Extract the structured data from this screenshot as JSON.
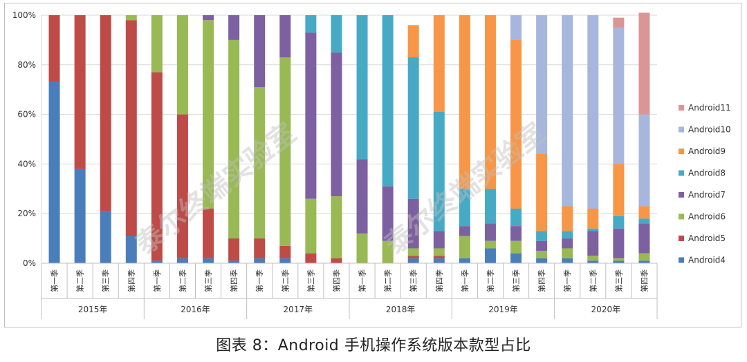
{
  "caption": "图表 8：Android 手机操作系统版本款型占比",
  "watermark": "泰尔终端实验室",
  "chart_data": {
    "type": "bar",
    "stacked": true,
    "percent": true,
    "ylim": [
      0,
      100
    ],
    "yticks": [
      "0%",
      "20%",
      "40%",
      "60%",
      "80%",
      "100%"
    ],
    "grid": true,
    "legend_position": "right",
    "years": [
      "2015年",
      "2016年",
      "2017年",
      "2018年",
      "2019年",
      "2020年"
    ],
    "quarter_labels": [
      "第一季",
      "第二季",
      "第三季",
      "第四季"
    ],
    "series": [
      {
        "name": "Android4",
        "color": "#4a7ebb",
        "values": [
          73,
          38,
          21,
          11,
          1,
          2,
          2,
          1,
          2,
          2,
          0,
          0,
          0,
          0,
          2,
          2,
          2,
          6,
          4,
          2,
          2,
          1,
          1,
          1
        ]
      },
      {
        "name": "Android5",
        "color": "#be4b48",
        "values": [
          27,
          62,
          79,
          87,
          76,
          58,
          20,
          9,
          8,
          5,
          4,
          2,
          0,
          0,
          1,
          1,
          0,
          0,
          0,
          0,
          0,
          0,
          0,
          0
        ]
      },
      {
        "name": "Android6",
        "color": "#98b954",
        "values": [
          0,
          0,
          0,
          2,
          23,
          40,
          76,
          80,
          61,
          76,
          22,
          25,
          12,
          9,
          3,
          3,
          9,
          3,
          5,
          3,
          4,
          2,
          1,
          3
        ]
      },
      {
        "name": "Android7",
        "color": "#7d60a0",
        "values": [
          0,
          0,
          0,
          0,
          0,
          0,
          2,
          10,
          29,
          17,
          67,
          58,
          30,
          22,
          20,
          7,
          4,
          7,
          6,
          4,
          4,
          10,
          12,
          12
        ]
      },
      {
        "name": "Android8",
        "color": "#46aac5",
        "values": [
          0,
          0,
          0,
          0,
          0,
          0,
          0,
          0,
          0,
          0,
          7,
          15,
          58,
          69,
          57,
          48,
          15,
          14,
          7,
          4,
          3,
          1,
          5,
          2
        ]
      },
      {
        "name": "Android9",
        "color": "#f79646",
        "values": [
          0,
          0,
          0,
          0,
          0,
          0,
          0,
          0,
          0,
          0,
          0,
          0,
          0,
          0,
          13,
          39,
          70,
          70,
          68,
          31,
          10,
          8,
          21,
          5
        ]
      },
      {
        "name": "Android10",
        "color": "#a6b6dc",
        "values": [
          0,
          0,
          0,
          0,
          0,
          0,
          0,
          0,
          0,
          0,
          0,
          0,
          0,
          0,
          0,
          0,
          0,
          0,
          10,
          56,
          77,
          78,
          55,
          37
        ]
      },
      {
        "name": "Android11",
        "color": "#d99694",
        "values": [
          0,
          0,
          0,
          0,
          0,
          0,
          0,
          0,
          0,
          0,
          0,
          0,
          0,
          0,
          0,
          0,
          0,
          0,
          0,
          0,
          0,
          0,
          4,
          41
        ]
      }
    ]
  }
}
